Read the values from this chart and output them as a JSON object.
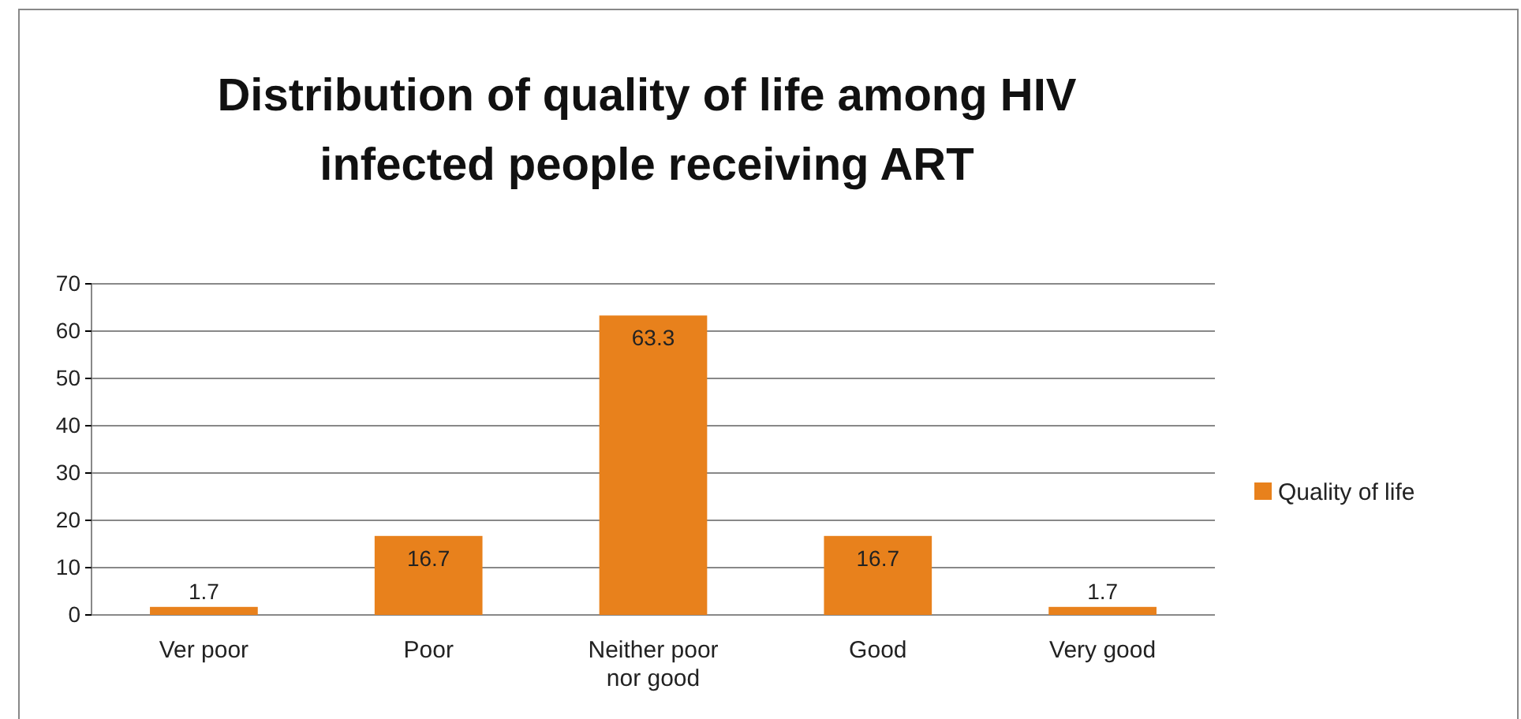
{
  "chart_data": {
    "type": "bar",
    "title": "Distribution of quality of life among HIV infected people receiving ART",
    "categories": [
      "Ver poor",
      "Poor",
      "Neither poor nor good",
      "Good",
      "Very good"
    ],
    "series": [
      {
        "name": "Quality of life",
        "color": "#e8811c",
        "values": [
          1.7,
          16.7,
          63.3,
          16.7,
          1.7
        ]
      }
    ],
    "ylim": [
      0,
      70
    ],
    "yticks": [
      0,
      10,
      20,
      30,
      40,
      50,
      60,
      70
    ],
    "grid": "y",
    "legend": "right",
    "data_labels": true
  }
}
